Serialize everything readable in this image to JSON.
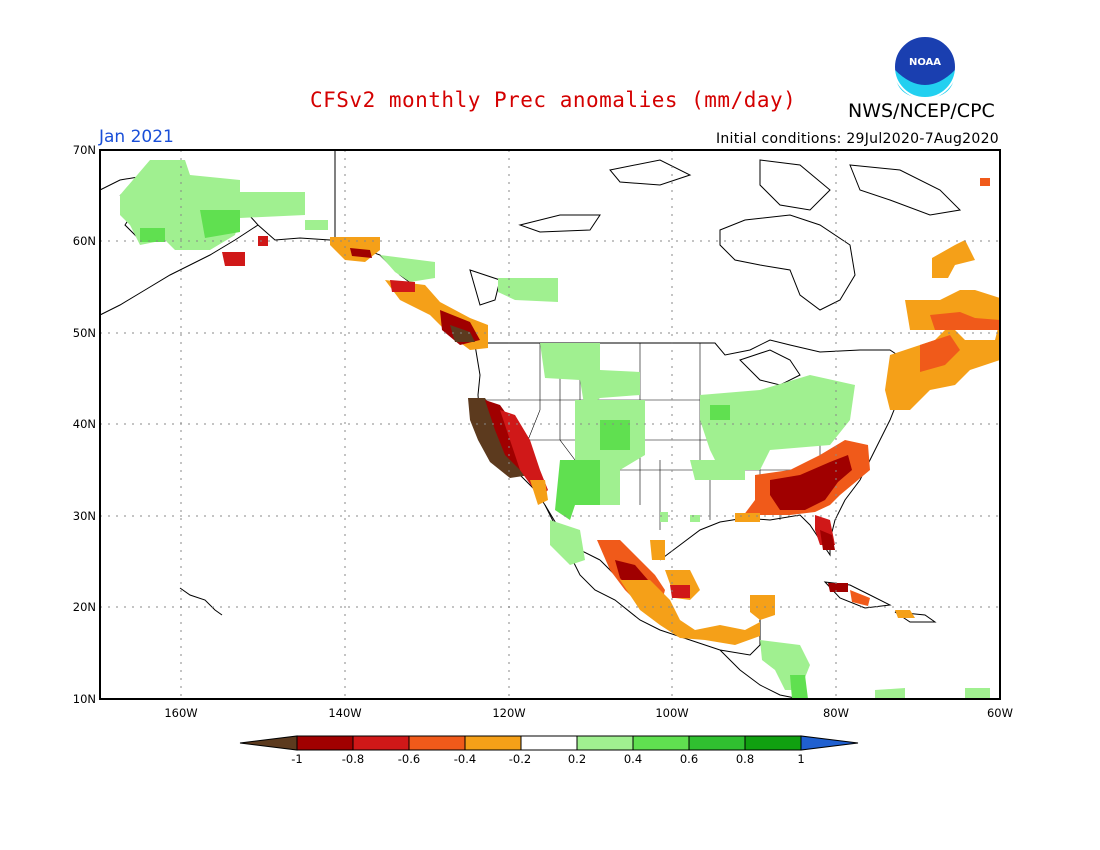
{
  "header": {
    "title": "CFSv2 monthly Prec anomalies (mm/day)",
    "org": "NWS/NCEP/CPC",
    "month": "Jan 2021",
    "initial_conditions": "Initial conditions: 29Jul2020-7Aug2020"
  },
  "map": {
    "lat_labels": [
      "70N",
      "60N",
      "50N",
      "40N",
      "30N",
      "20N",
      "10N"
    ],
    "lon_labels": [
      "160W",
      "140W",
      "120W",
      "100W",
      "80W",
      "60W"
    ],
    "lat_range": [
      10,
      70
    ],
    "lon_range": [
      -170,
      -60
    ]
  },
  "colorbar": {
    "labels": [
      "-1",
      "-0.8",
      "-0.6",
      "-0.4",
      "-0.2",
      "0.2",
      "0.4",
      "0.6",
      "0.8",
      "1"
    ],
    "colors": [
      "#5c3a1e",
      "#a00000",
      "#d01818",
      "#f05a1a",
      "#f5a018",
      "#ffffff",
      "#a0f090",
      "#60e050",
      "#30c030",
      "#10a010",
      "#2060d0"
    ]
  },
  "logo_text": "NOAA"
}
